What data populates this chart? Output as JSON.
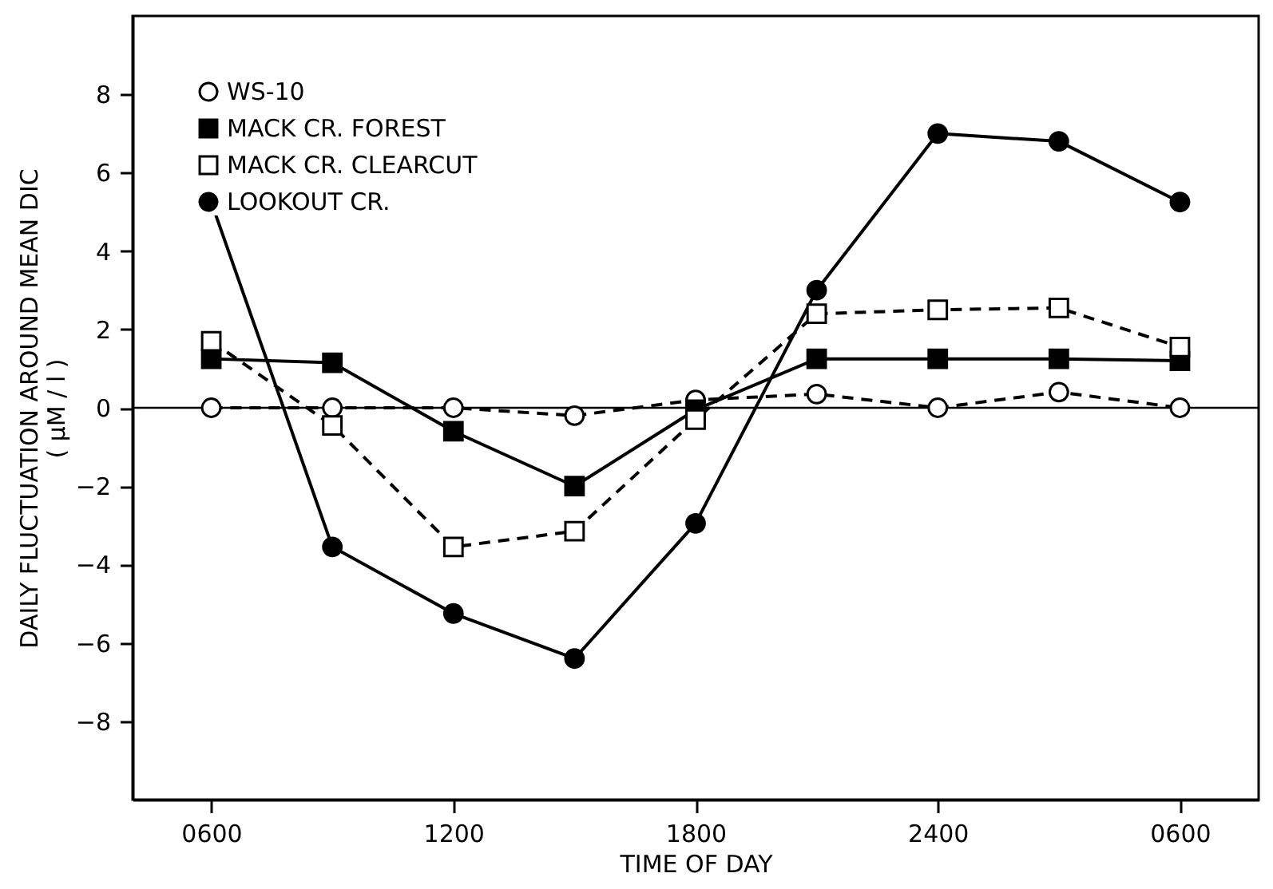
{
  "chart_data": {
    "type": "line",
    "xlabel": "TIME OF DAY",
    "ylabel": "DAILY FLUCTUATION AROUND MEAN DIC\n( μM / l )",
    "categories": [
      "0600",
      null,
      "1200",
      null,
      "1800",
      null,
      "2400",
      null,
      "0600"
    ],
    "ylim": [
      -10,
      10
    ],
    "yticks": [
      -8,
      -6,
      -4,
      -2,
      0,
      2,
      4,
      6,
      8
    ],
    "series": [
      {
        "name": "WS-10",
        "color": "#ffffff",
        "marker": "circle",
        "line_style": "dashed",
        "values": [
          0,
          0,
          0,
          -0.2,
          0.2,
          0.35,
          0,
          0.4,
          0
        ]
      },
      {
        "name": "MACK CR. FOREST",
        "color": "#000000",
        "marker": "square",
        "line_style": "solid",
        "values": [
          1.25,
          1.15,
          -0.6,
          -2.0,
          -0.05,
          1.25,
          1.25,
          1.25,
          1.2
        ]
      },
      {
        "name": "MACK CR. CLEARCUT",
        "color": "#ffffff",
        "marker": "square",
        "line_style": "dashed",
        "values": [
          1.7,
          -0.45,
          -3.55,
          -3.15,
          -0.3,
          2.4,
          2.5,
          2.55,
          1.55
        ]
      },
      {
        "name": "LOOKOUT CR.",
        "color": "#000000",
        "marker": "circle",
        "line_style": "solid",
        "values": [
          5.25,
          -3.55,
          -5.25,
          -6.4,
          -2.95,
          3.0,
          7.0,
          6.8,
          5.25
        ]
      }
    ],
    "ref_lines": [
      {
        "axis": "y",
        "value": 0,
        "color": "#000000"
      }
    ],
    "legend": "top left"
  }
}
